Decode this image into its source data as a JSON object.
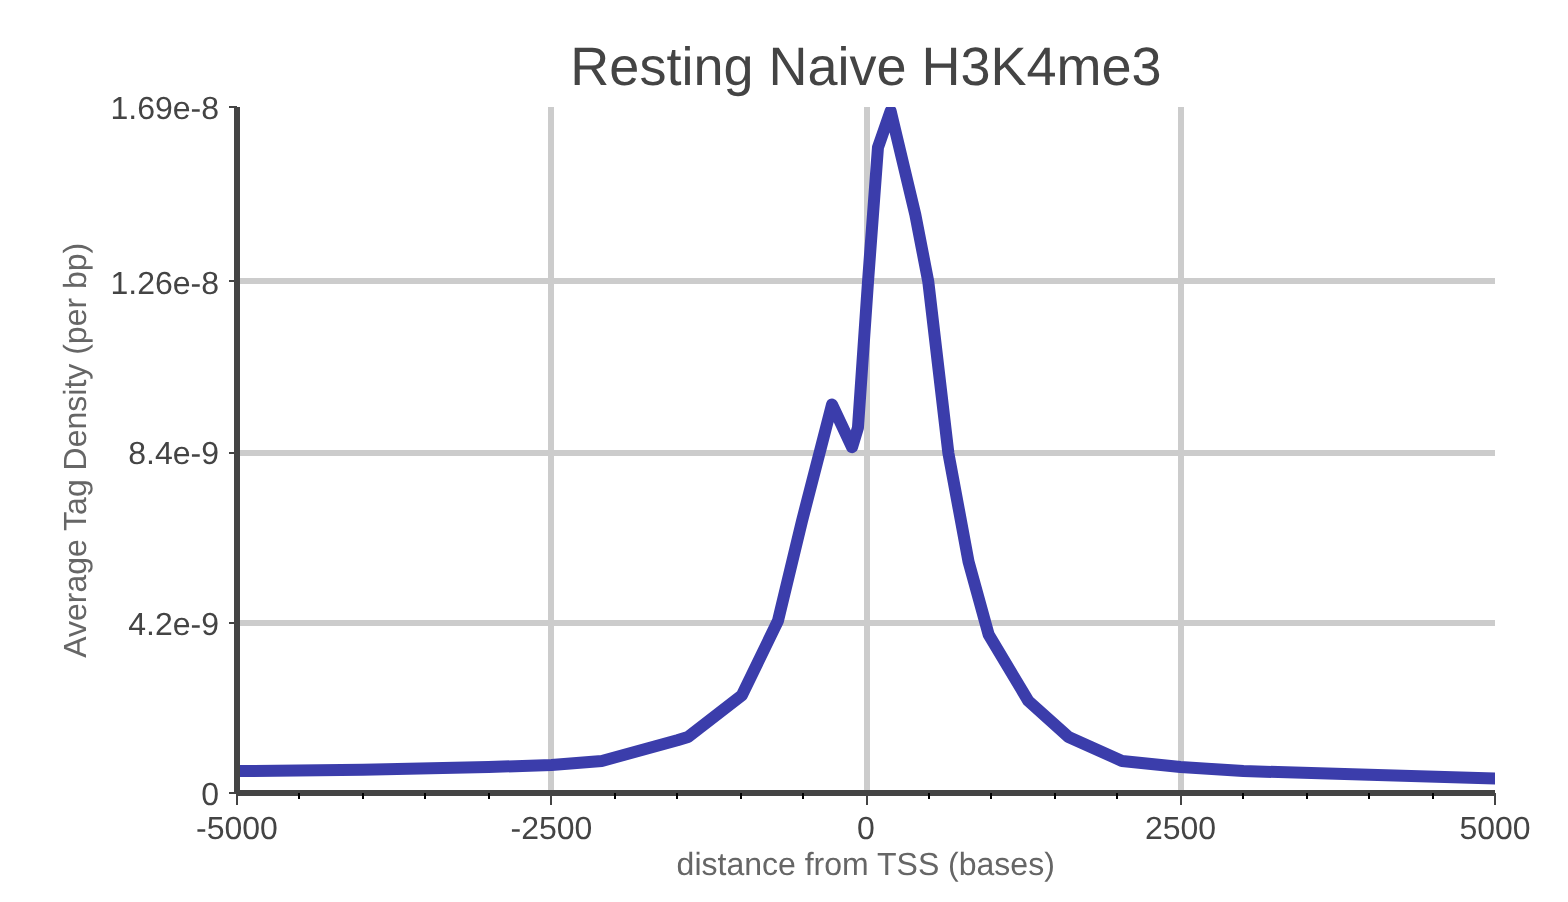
{
  "chart_data": {
    "type": "line",
    "title": "Resting Naive H3K4me3",
    "xlabel": "distance from TSS (bases)",
    "ylabel": "Average Tag Density (per bp)",
    "x": [
      -5000,
      -4000,
      -3000,
      -2500,
      -2100,
      -1500,
      -1415,
      -986,
      -700,
      -509,
      -270,
      -111,
      -64,
      16,
      95,
      196,
      392,
      495,
      655,
      815,
      975,
      1290,
      1610,
      2035,
      2500,
      3000,
      4000,
      5000
    ],
    "series": [
      {
        "color": "#3b3dab",
        "values": [
          5.4e-10,
          5.7e-10,
          6.4e-10,
          6.9e-10,
          7.9e-10,
          1.3e-09,
          1.38e-09,
          2.41e-09,
          4.24e-09,
          6.7e-09,
          9.57e-09,
          8.52e-09,
          9e-09,
          1.26e-08,
          1.59e-08,
          1.68e-08,
          1.425e-08,
          1.26e-08,
          8.37e-09,
          5.7e-09,
          3.9e-09,
          2.27e-09,
          1.38e-09,
          7.9e-10,
          6.4e-10,
          5.4e-10,
          4.5e-10,
          3.6e-10
        ]
      }
    ],
    "xlim": [
      -5000,
      5000
    ],
    "xticks": [
      -5000,
      -2500,
      0,
      2500,
      5000
    ],
    "ylim": [
      0,
      1.69e-08
    ],
    "yticks": [
      {
        "value": 0,
        "label": "0"
      },
      {
        "value": 4.2e-09,
        "label": "4.2e-9"
      },
      {
        "value": 8.4e-09,
        "label": "8.4e-9"
      },
      {
        "value": 1.26e-08,
        "label": "1.26e-8"
      },
      {
        "value": 1.69e-08,
        "label": "1.69e-8"
      }
    ],
    "grid": true,
    "line_style": "solid",
    "marker": "none"
  }
}
